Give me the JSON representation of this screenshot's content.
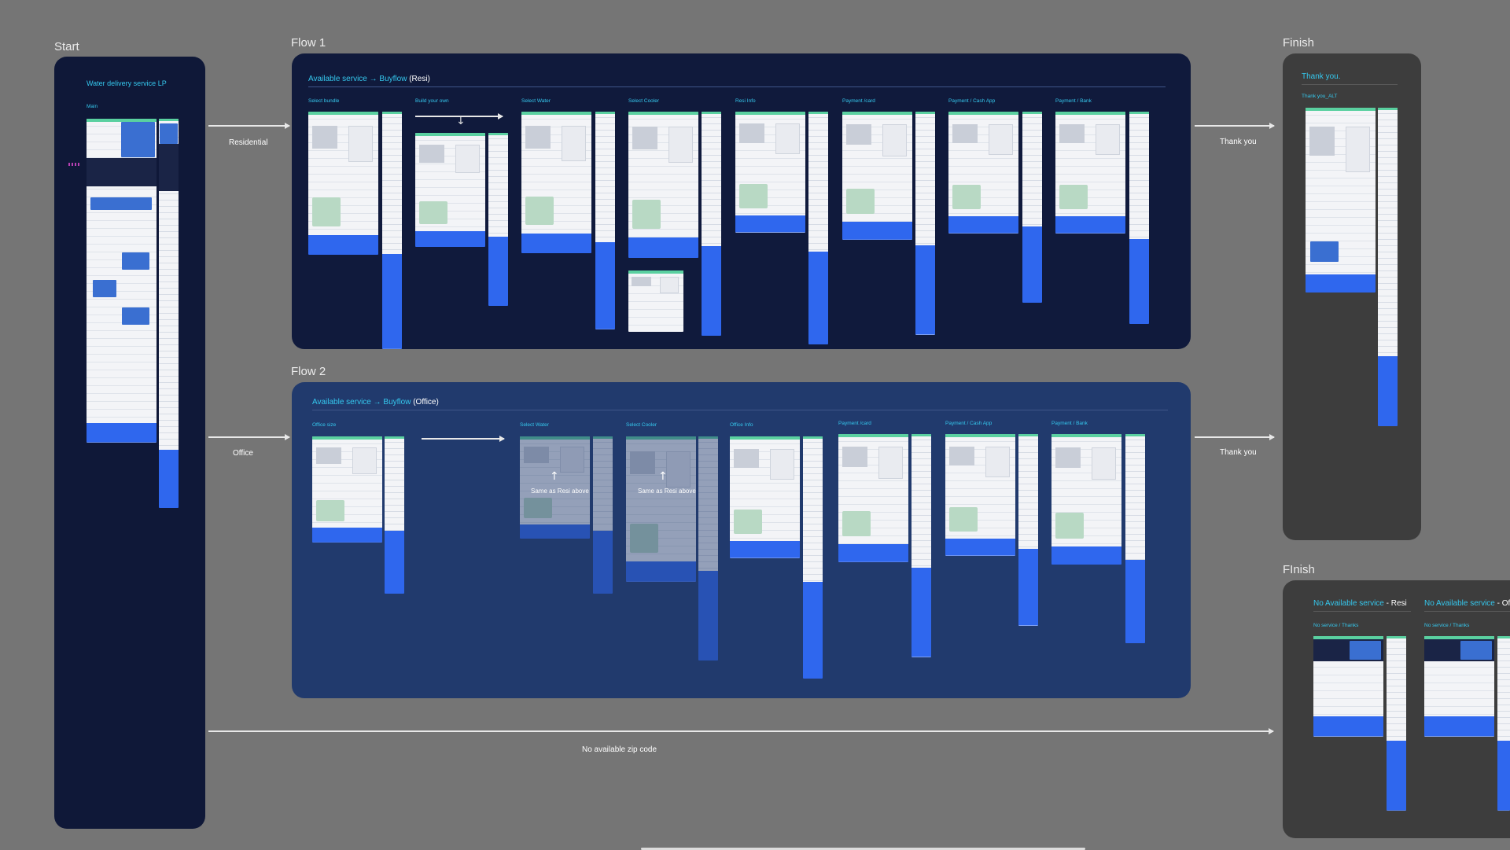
{
  "sections": {
    "start": "Start",
    "flow1": "Flow 1",
    "flow2": "Flow 2",
    "finish1": "Finish",
    "finish2": "FInish"
  },
  "start_board": {
    "title": "Water delivery service LP",
    "main_label": "Main"
  },
  "flow1": {
    "title": "Available service → Buyflow",
    "title_suffix": "(Resi)",
    "steps": [
      "Select bundle",
      "Build your own",
      "Select Water",
      "Select Cooler",
      "Resi Info",
      "Payment /card",
      "Payment / Cash App",
      "Payment / Bank"
    ]
  },
  "flow2": {
    "title": "Available service → Buyflow",
    "title_suffix": "(Office)",
    "steps": [
      "Office size",
      "Select Water",
      "Select Cooler",
      "Office Info",
      "Payment /card",
      "Payment / Cash App",
      "Payment / Bank"
    ],
    "overlay_text": "Same as Resi above"
  },
  "finish_board": {
    "title": "Thank you.",
    "subtitle": "Thank you_ALT"
  },
  "no_service_board": {
    "title_resi": "No Available service",
    "title_resi_suffix": "- Resi",
    "title_office": "No Available service",
    "title_office_suffix": "- Off",
    "sub_resi": "No service / Thanks",
    "sub_office": "No service / Thanks"
  },
  "connectors": {
    "residential": "Residential",
    "office": "Office",
    "thank_you_1": "Thank you",
    "thank_you_2": "Thank you",
    "no_zip": "No available zip code"
  },
  "colors": {
    "canvas": "#757575",
    "board_navy": "#101a3c",
    "board_mid": "#213a6d",
    "board_grey": "#3d3d3d",
    "accent_cyan": "#35c8ee",
    "screen_blue": "#2f67ee"
  }
}
